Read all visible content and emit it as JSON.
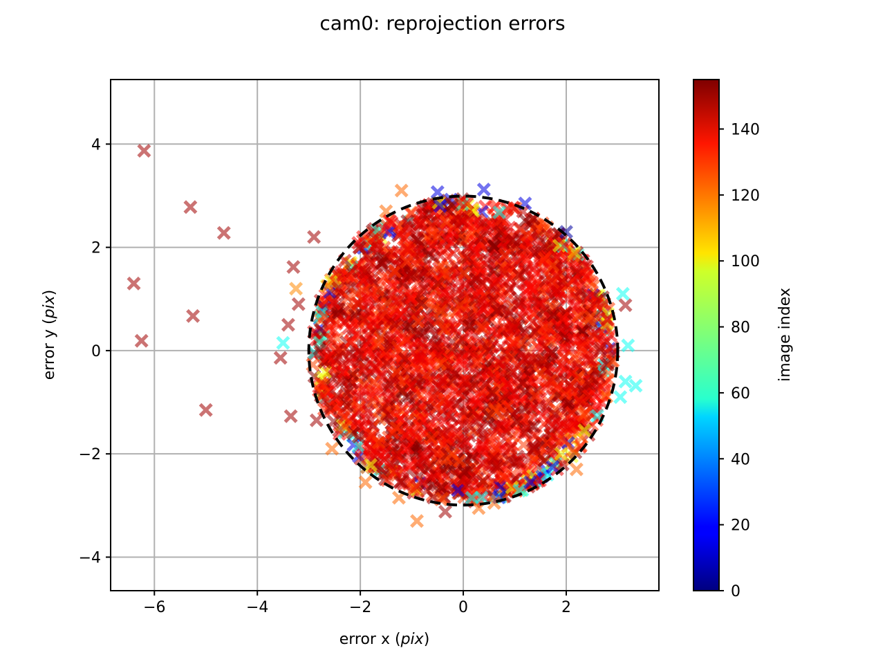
{
  "chart_data": {
    "type": "scatter",
    "title": "cam0: reprojection errors",
    "xlabel": "error x",
    "ylabel": "error y",
    "axis_unit": "pix",
    "xlim": [
      -6.85,
      3.8
    ],
    "ylim": [
      -4.65,
      5.25
    ],
    "xticks": [
      -6,
      -4,
      -2,
      0,
      2
    ],
    "yticks": [
      -4,
      -2,
      0,
      2,
      4
    ],
    "grid": true,
    "marker": "X",
    "colormap": "jet",
    "colorbar": {
      "label": "image index",
      "range": [
        0,
        155
      ],
      "ticks": [
        0,
        20,
        40,
        60,
        80,
        100,
        120,
        140
      ]
    },
    "circle": {
      "center": [
        0,
        0
      ],
      "radius": 3,
      "style": "dashed",
      "color": "#000000"
    },
    "outlier_points": [
      {
        "x": -6.2,
        "y": 3.87,
        "index": 150
      },
      {
        "x": -5.3,
        "y": 2.78,
        "index": 150
      },
      {
        "x": -4.65,
        "y": 2.28,
        "index": 150
      },
      {
        "x": -2.9,
        "y": 2.2,
        "index": 150
      },
      {
        "x": -3.3,
        "y": 1.62,
        "index": 150
      },
      {
        "x": -6.4,
        "y": 1.3,
        "index": 150
      },
      {
        "x": -5.25,
        "y": 0.67,
        "index": 150
      },
      {
        "x": -6.25,
        "y": 0.19,
        "index": 150
      },
      {
        "x": -5.0,
        "y": -1.15,
        "index": 150
      },
      {
        "x": -3.55,
        "y": -0.14,
        "index": 150
      },
      {
        "x": -3.35,
        "y": -1.27,
        "index": 150
      },
      {
        "x": -3.4,
        "y": 0.5,
        "index": 150
      },
      {
        "x": -3.5,
        "y": 0.15,
        "index": 60
      },
      {
        "x": -3.25,
        "y": 1.2,
        "index": 115
      },
      {
        "x": -3.2,
        "y": 0.9,
        "index": 150
      },
      {
        "x": -2.55,
        "y": -1.9,
        "index": 120
      },
      {
        "x": -1.2,
        "y": 3.1,
        "index": 120
      },
      {
        "x": -1.5,
        "y": 2.7,
        "index": 120
      },
      {
        "x": -0.5,
        "y": 3.07,
        "index": 15
      },
      {
        "x": -0.45,
        "y": 2.8,
        "index": 15
      },
      {
        "x": 0.4,
        "y": 3.12,
        "index": 15
      },
      {
        "x": 1.2,
        "y": 2.85,
        "index": 15
      },
      {
        "x": 2.0,
        "y": 2.3,
        "index": 5
      },
      {
        "x": 3.1,
        "y": 1.1,
        "index": 60
      },
      {
        "x": 3.15,
        "y": 0.88,
        "index": 150
      },
      {
        "x": 3.2,
        "y": 0.1,
        "index": 60
      },
      {
        "x": 3.15,
        "y": -0.6,
        "index": 60
      },
      {
        "x": 3.35,
        "y": -0.68,
        "index": 60
      },
      {
        "x": 3.05,
        "y": -0.9,
        "index": 60
      },
      {
        "x": 2.2,
        "y": -2.3,
        "index": 120
      },
      {
        "x": 1.9,
        "y": -2.0,
        "index": 95
      },
      {
        "x": -0.9,
        "y": -3.3,
        "index": 120
      },
      {
        "x": -0.35,
        "y": -3.12,
        "index": 150
      },
      {
        "x": 0.3,
        "y": -3.05,
        "index": 120
      },
      {
        "x": 0.6,
        "y": -2.95,
        "index": 120
      },
      {
        "x": -1.25,
        "y": -2.85,
        "index": 120
      },
      {
        "x": -1.9,
        "y": -2.55,
        "index": 120
      },
      {
        "x": 1.3,
        "y": -2.55,
        "index": 15
      },
      {
        "x": -2.85,
        "y": -1.35,
        "index": 150
      }
    ]
  }
}
